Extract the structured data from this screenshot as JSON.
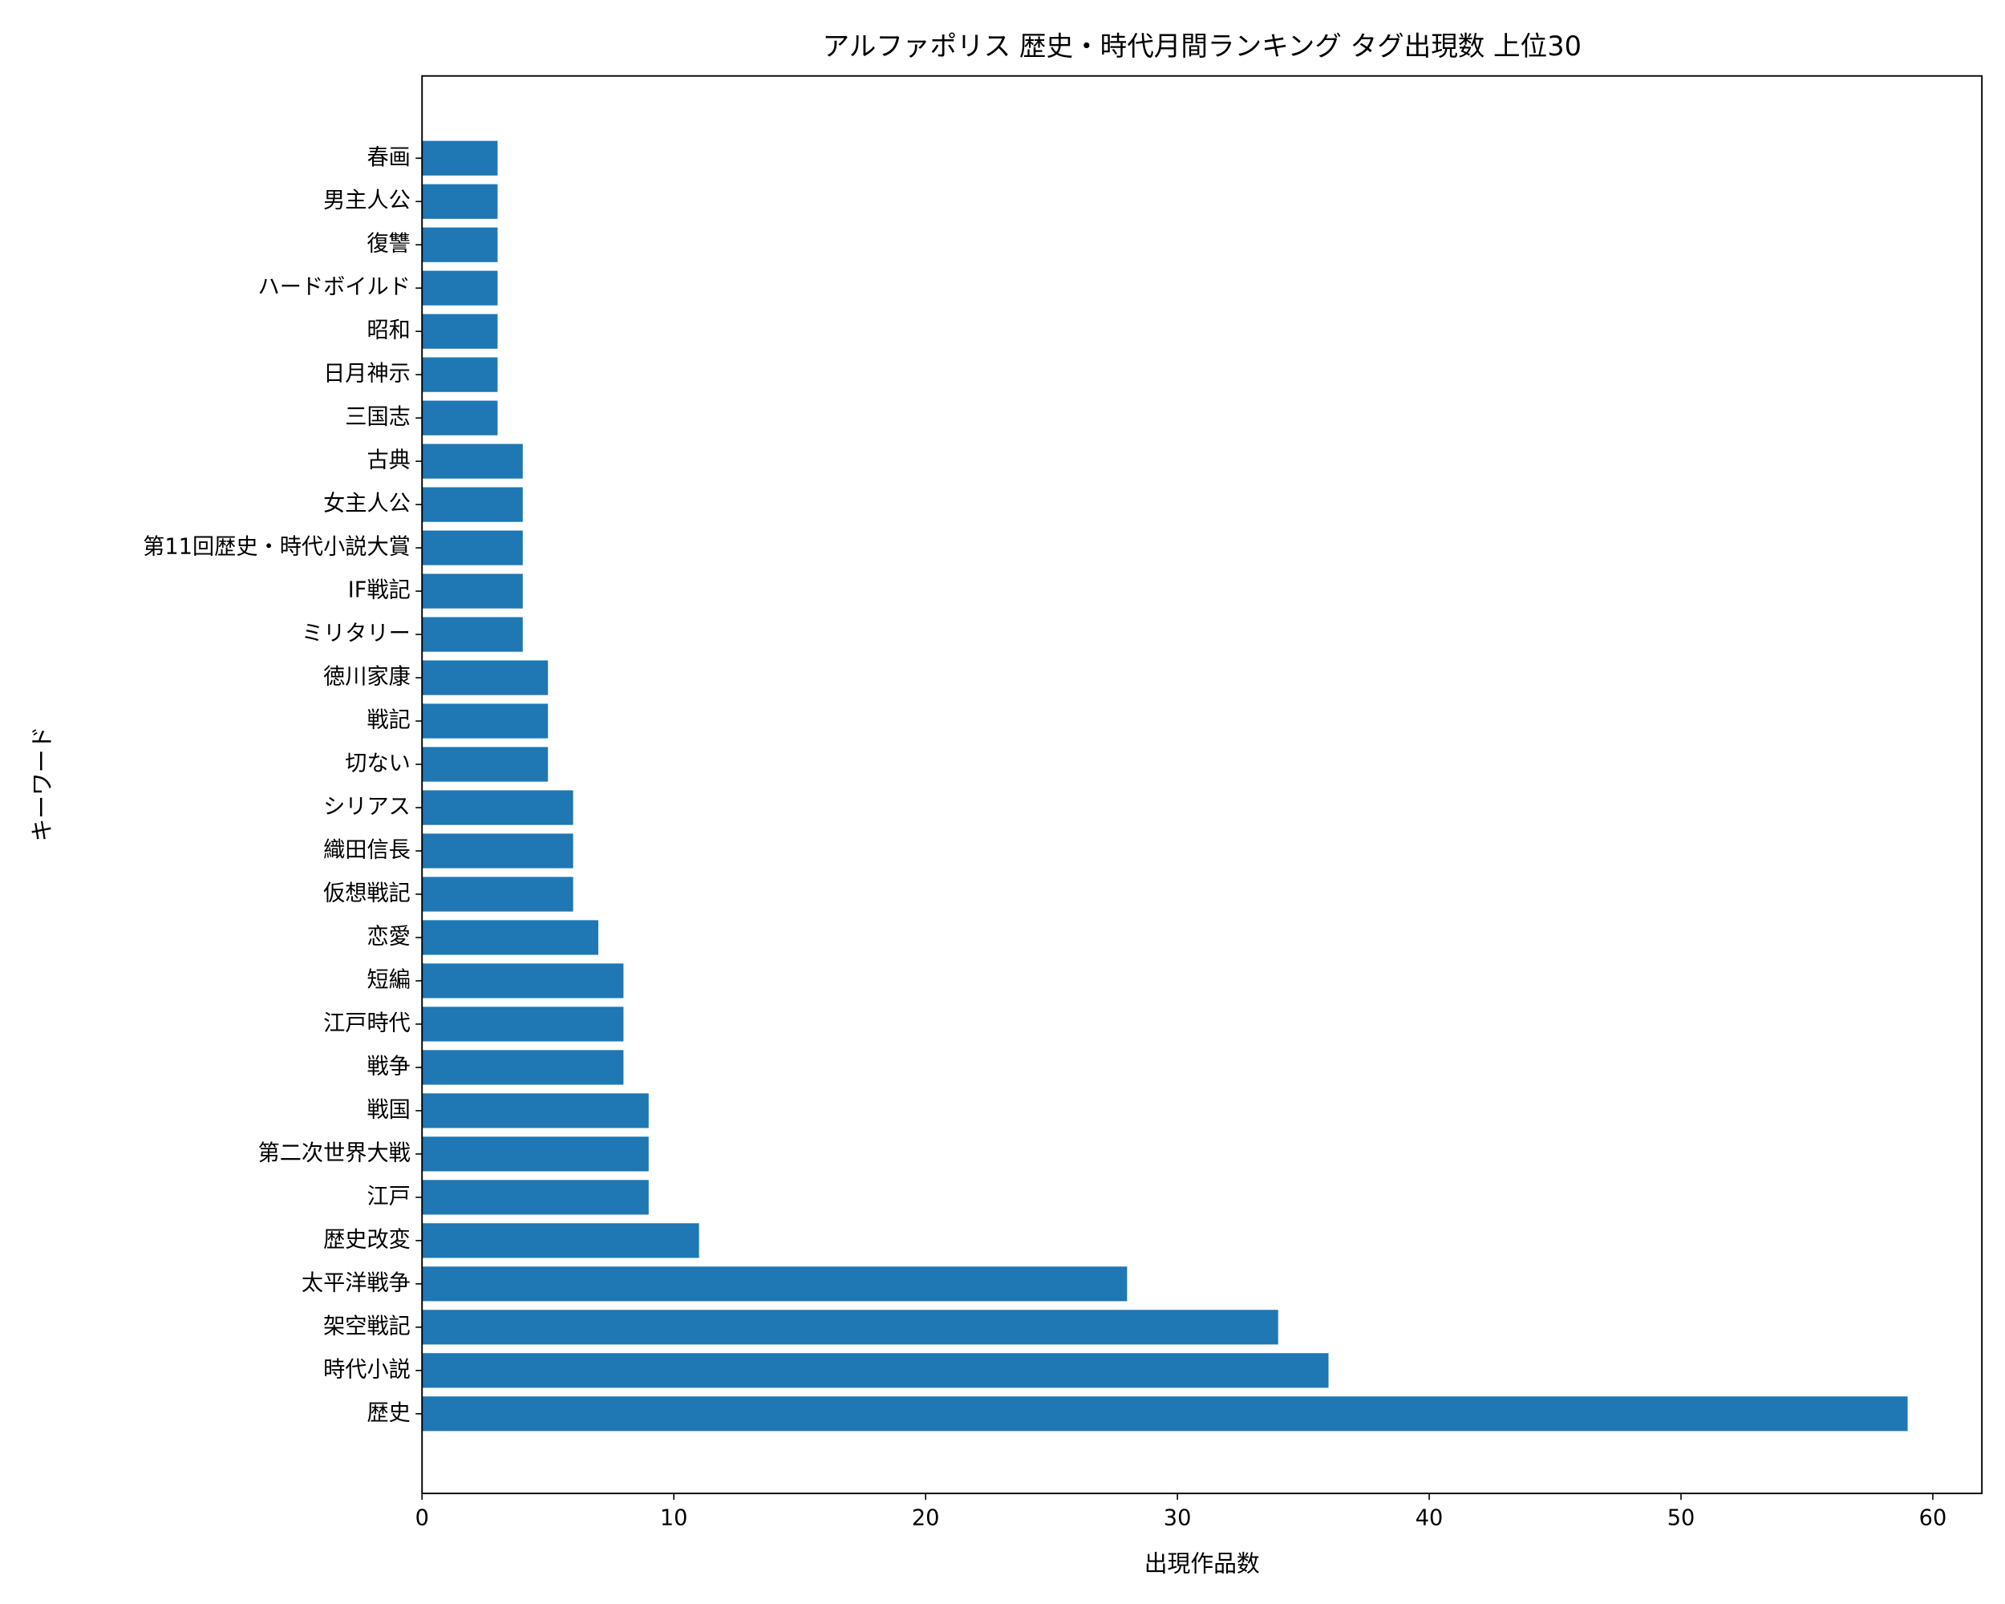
{
  "chart_data": {
    "type": "barh",
    "title": "アルファポリス 歴史・時代月間ランキング タグ出現数 上位30",
    "xlabel": "出現作品数",
    "ylabel": "キーワード",
    "categories": [
      "歴史",
      "時代小説",
      "架空戦記",
      "太平洋戦争",
      "歴史改変",
      "江戸",
      "第二次世界大戦",
      "戦国",
      "戦争",
      "江戸時代",
      "短編",
      "恋愛",
      "仮想戦記",
      "織田信長",
      "シリアス",
      "切ない",
      "戦記",
      "徳川家康",
      "ミリタリー",
      "IF戦記",
      "第11回歴史・時代小説大賞",
      "女主人公",
      "古典",
      "三国志",
      "日月神示",
      "昭和",
      "ハードボイルド",
      "復讐",
      "男主人公",
      "春画"
    ],
    "values": [
      59,
      36,
      34,
      28,
      11,
      9,
      9,
      9,
      8,
      8,
      8,
      7,
      6,
      6,
      6,
      5,
      5,
      5,
      4,
      4,
      4,
      4,
      4,
      3,
      3,
      3,
      3,
      3,
      3,
      3
    ],
    "color": "#1f77b4",
    "xlim": [
      0,
      61.95
    ],
    "xticks": [
      0,
      10,
      20,
      30,
      40,
      50,
      60
    ],
    "ylim": [
      -1.84,
      30.9
    ]
  }
}
